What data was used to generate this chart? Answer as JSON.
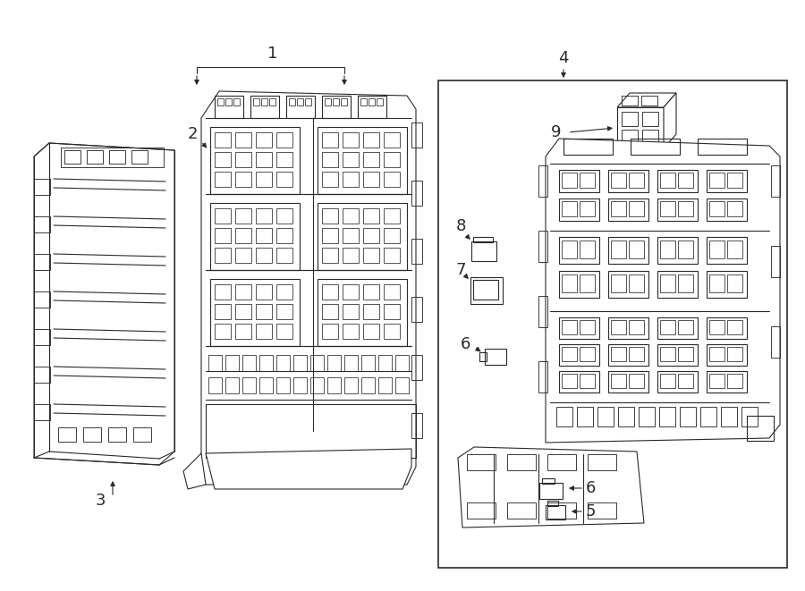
{
  "bg_color": "#ffffff",
  "line_color": "#2a2a2a",
  "lw": 0.8,
  "figsize": [
    9.0,
    6.61
  ],
  "dpi": 100,
  "img_extent": [
    0,
    900,
    661,
    0
  ]
}
